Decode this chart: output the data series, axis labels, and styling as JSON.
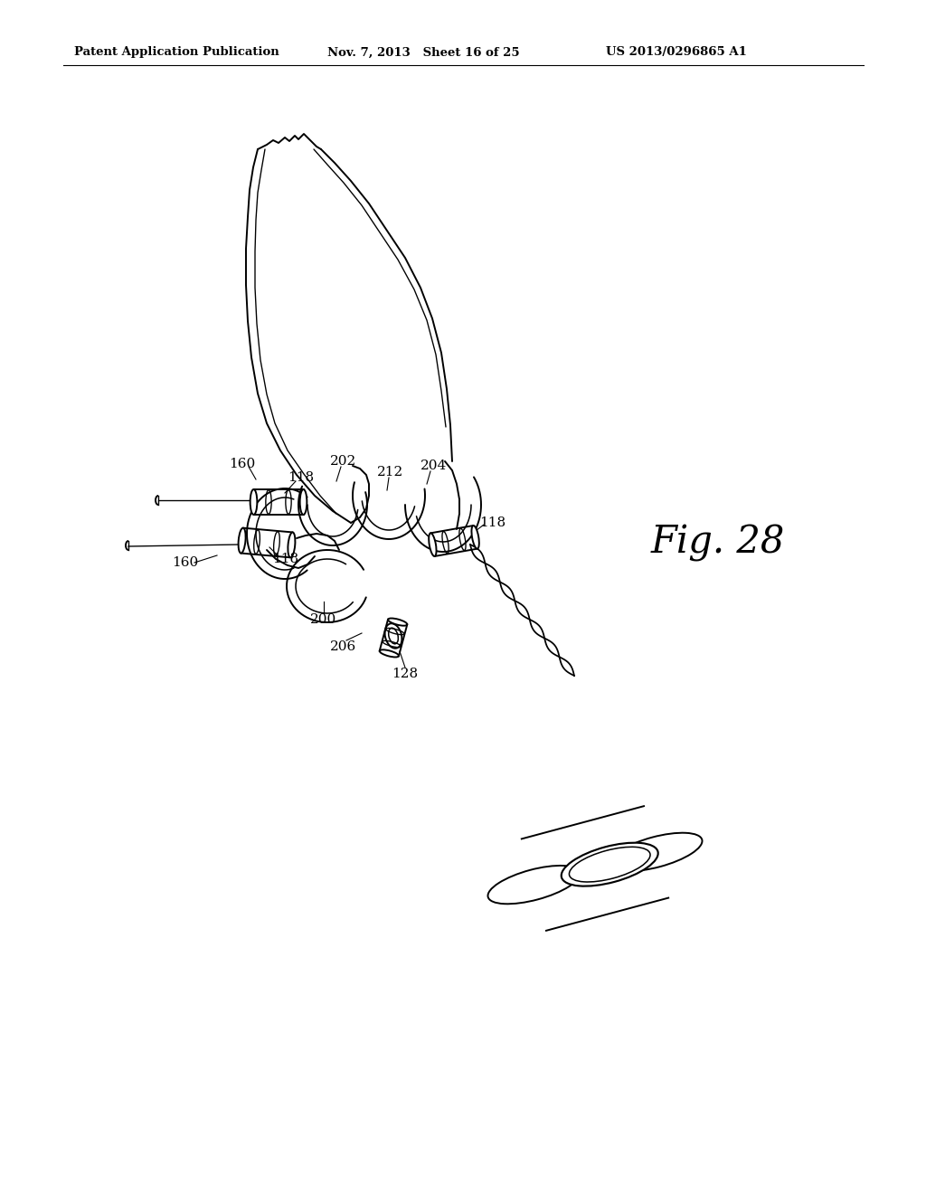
{
  "background_color": "#ffffff",
  "header_left": "Patent Application Publication",
  "header_center": "Nov. 7, 2013   Sheet 16 of 25",
  "header_right": "US 2013/0296865 A1",
  "fig_label": "Fig. 28",
  "lw": 1.4,
  "color": "#000000",
  "header_fontsize": 9.5,
  "fig_label_fontsize": 30,
  "ref_fontsize": 11
}
